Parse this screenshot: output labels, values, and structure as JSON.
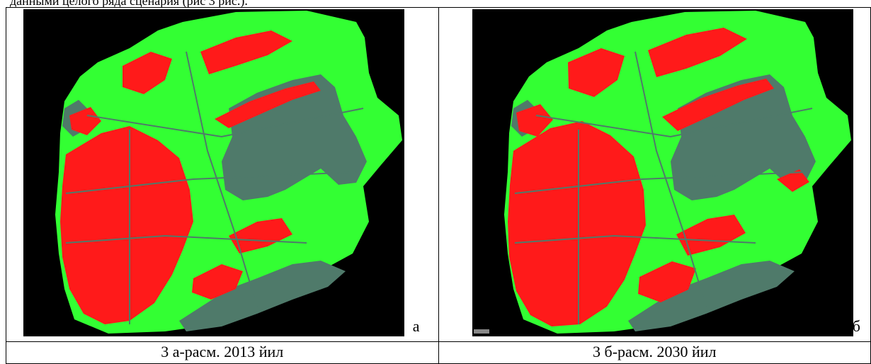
{
  "document": {
    "intro_line": "данными целого ряда сценария (рис 3 рис.).",
    "figures": [
      {
        "letter": "а",
        "caption": "3 а-расм. 2013 йил",
        "map_name": "land-cover-map-2013"
      },
      {
        "letter": "б",
        "caption": "3 б-расм. 2030 йил",
        "map_name": "land-cover-map-2030"
      }
    ]
  },
  "colors": {
    "background": "#000000",
    "vegetation": "#33ff33",
    "urban": "#ff1a1a",
    "other": "#4f7a6a"
  }
}
